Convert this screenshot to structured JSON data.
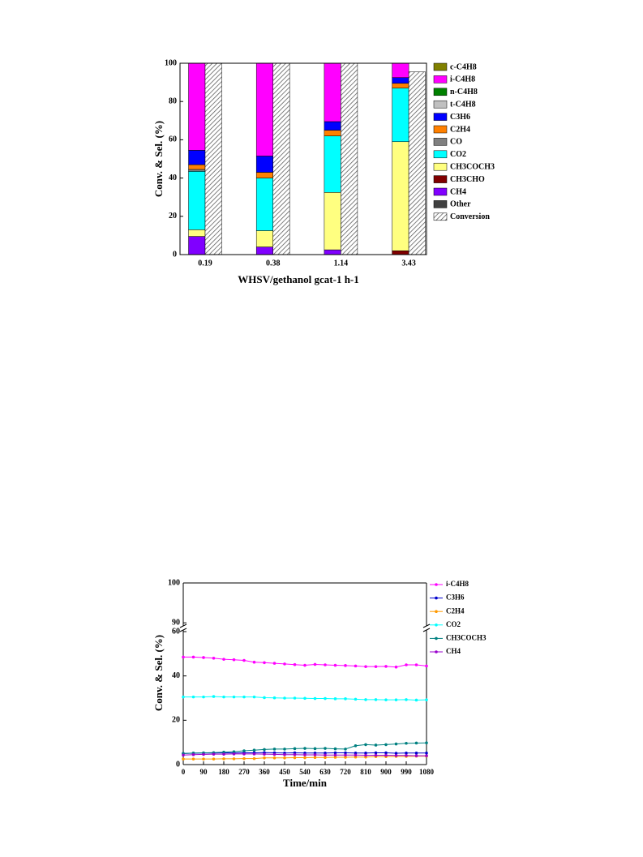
{
  "chart_data": [
    {
      "type": "stacked-bar",
      "ylabel": "Conv. & Sel. (%)",
      "xlabel": "WHSV/gethanol gcat-1 h-1",
      "categories": [
        "0.19",
        "0.38",
        "1.14",
        "3.43"
      ],
      "ylim": [
        0,
        100
      ],
      "yticks": [
        0,
        20,
        40,
        60,
        80,
        100
      ],
      "series": [
        {
          "name": "Other",
          "color": "#404040",
          "values": [
            0,
            0,
            0,
            0
          ]
        },
        {
          "name": "CH4",
          "color": "#8000ff",
          "values": [
            9.5,
            4,
            2.5,
            0
          ]
        },
        {
          "name": "CH3CHO",
          "color": "#800000",
          "values": [
            0,
            0,
            0,
            2
          ]
        },
        {
          "name": "CH3COCH3",
          "color": "#ffff80",
          "values": [
            3.5,
            8.5,
            30,
            57
          ]
        },
        {
          "name": "CO2",
          "color": "#00ffff",
          "values": [
            30.5,
            27.5,
            29.5,
            28
          ]
        },
        {
          "name": "CO",
          "color": "#808080",
          "values": [
            1,
            0,
            0,
            0
          ]
        },
        {
          "name": "C2H4",
          "color": "#ff8000",
          "values": [
            2.5,
            3,
            3,
            2.5
          ]
        },
        {
          "name": "C3H6",
          "color": "#0000ff",
          "values": [
            7.5,
            8.5,
            4.5,
            3
          ]
        },
        {
          "name": "t-C4H8",
          "color": "#c0c0c0",
          "values": [
            0,
            0,
            0,
            0
          ]
        },
        {
          "name": "n-C4H8",
          "color": "#008000",
          "values": [
            0,
            0,
            0,
            0
          ]
        },
        {
          "name": "i-C4H8",
          "color": "#ff00ff",
          "values": [
            45.5,
            48.5,
            30.5,
            7.5
          ]
        },
        {
          "name": "c-C4H8",
          "color": "#808000",
          "values": [
            0,
            0,
            0,
            0
          ]
        }
      ],
      "conversion": {
        "name": "Conversion",
        "values": [
          100,
          100,
          100,
          95.5
        ]
      }
    },
    {
      "type": "line",
      "ylabel": "Conv. & Sel. (%)",
      "xlabel": "Time/min",
      "x": [
        0,
        45,
        90,
        135,
        180,
        225,
        270,
        315,
        360,
        405,
        450,
        495,
        540,
        585,
        630,
        675,
        720,
        765,
        810,
        855,
        900,
        945,
        990,
        1035,
        1080
      ],
      "xlim": [
        0,
        1080
      ],
      "xticks": [
        0,
        90,
        180,
        270,
        360,
        450,
        540,
        630,
        720,
        810,
        900,
        990,
        1080
      ],
      "ylim": [
        0,
        60
      ],
      "yticks": [
        0,
        20,
        40,
        60
      ],
      "ylim_upper": [
        88,
        100
      ],
      "yticks_upper": [
        90,
        100
      ],
      "series": [
        {
          "name": "i-C4H8",
          "color": "#ff00ff",
          "values": [
            48.5,
            48.5,
            48.3,
            48,
            47.5,
            47.3,
            47,
            46.2,
            46,
            45.7,
            45.4,
            45.1,
            44.8,
            45.2,
            45,
            44.8,
            44.7,
            44.5,
            44.2,
            44.2,
            44.3,
            44,
            45,
            45,
            44.5
          ]
        },
        {
          "name": "C3H6",
          "color": "#0000cc",
          "values": [
            5,
            5.1,
            5.2,
            5.2,
            5.3,
            5.2,
            5.3,
            5.3,
            5.4,
            5.3,
            5.2,
            5.3,
            5.2,
            5.2,
            5.2,
            5.3,
            5.3,
            5.2,
            5.2,
            5.3,
            5.3,
            5.1,
            5.2,
            5.2,
            5.2
          ]
        },
        {
          "name": "C2H4",
          "color": "#ff9900",
          "values": [
            2.5,
            2.5,
            2.5,
            2.5,
            2.6,
            2.6,
            2.7,
            2.7,
            3,
            3,
            3,
            3.1,
            3.1,
            3.2,
            3.2,
            3.3,
            3.3,
            3.4,
            3.4,
            3.6,
            3.6,
            3.7,
            3.7,
            3.8,
            3.8
          ]
        },
        {
          "name": "CO2",
          "color": "#00ffff",
          "values": [
            30.5,
            30.5,
            30.5,
            30.7,
            30.5,
            30.5,
            30.5,
            30.5,
            30.2,
            30.1,
            30,
            30,
            29.9,
            29.8,
            29.8,
            29.7,
            29.7,
            29.5,
            29.3,
            29.3,
            29.2,
            29.2,
            29.3,
            29.1,
            29.2
          ]
        },
        {
          "name": "CH3COCH3",
          "color": "#008080",
          "values": [
            5,
            5.2,
            5.3,
            5.4,
            5.6,
            5.8,
            6.2,
            6.5,
            6.8,
            7,
            7,
            7.2,
            7.3,
            7.2,
            7.3,
            7.1,
            7,
            8.5,
            9,
            8.8,
            9,
            9.3,
            9.6,
            9.7,
            9.8
          ]
        },
        {
          "name": "CH4",
          "color": "#9900cc",
          "values": [
            4.3,
            4.5,
            4.6,
            4.7,
            4.7,
            4.8,
            4.8,
            4.8,
            4.7,
            4.6,
            4.5,
            4.5,
            4.4,
            4.4,
            4.3,
            4.3,
            4.3,
            4.3,
            4.2,
            4.2,
            4.2,
            4.1,
            4.1,
            4,
            4
          ]
        }
      ]
    }
  ]
}
